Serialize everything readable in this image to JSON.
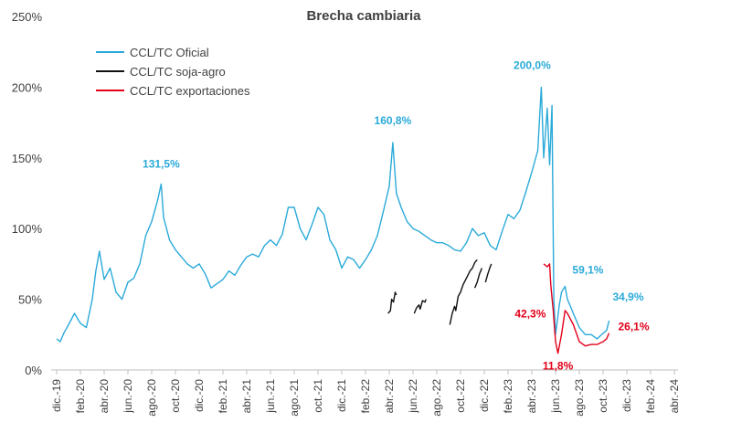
{
  "chart_data": {
    "type": "line",
    "title": "Brecha cambiaria",
    "xlabel": "",
    "ylabel": "",
    "ylim": [
      0,
      250
    ],
    "y_ticks": [
      "0%",
      "50%",
      "100%",
      "150%",
      "200%",
      "250%"
    ],
    "y_tick_values": [
      0,
      50,
      100,
      150,
      200,
      250
    ],
    "x_tick_labels": [
      "dic.-19",
      "feb.-20",
      "abr.-20",
      "jun.-20",
      "ago.-20",
      "oct.-20",
      "dic.-20",
      "feb.-21",
      "abr.-21",
      "jun.-21",
      "ago.-21",
      "oct.-21",
      "dic.-21",
      "feb.-22",
      "abr.-22",
      "jun.-22",
      "ago.-22",
      "oct.-22",
      "dic.-22",
      "feb.-23",
      "abr.-23",
      "jun.-23",
      "ago.-23",
      "oct.-23",
      "dic.-23",
      "feb.-24",
      "abr.-24"
    ],
    "x_unit": "months since Dec 2019",
    "legend_position": "top-left",
    "series": [
      {
        "name": "CCL/TC Oficial",
        "color": "#2BAAD9",
        "points": [
          [
            0,
            22
          ],
          [
            0.3,
            20
          ],
          [
            0.6,
            26
          ],
          [
            1,
            32
          ],
          [
            1.5,
            40
          ],
          [
            2,
            33
          ],
          [
            2.5,
            30
          ],
          [
            3,
            50
          ],
          [
            3.3,
            70
          ],
          [
            3.6,
            84
          ],
          [
            4,
            64
          ],
          [
            4.5,
            72
          ],
          [
            5,
            55
          ],
          [
            5.5,
            50
          ],
          [
            6,
            62
          ],
          [
            6.5,
            65
          ],
          [
            7,
            75
          ],
          [
            7.5,
            95
          ],
          [
            8,
            105
          ],
          [
            8.5,
            120
          ],
          [
            8.8,
            131.5
          ],
          [
            9,
            108
          ],
          [
            9.5,
            92
          ],
          [
            10,
            85
          ],
          [
            10.5,
            80
          ],
          [
            11,
            75
          ],
          [
            11.5,
            72
          ],
          [
            12,
            75
          ],
          [
            12.5,
            68
          ],
          [
            13,
            58
          ],
          [
            13.5,
            61
          ],
          [
            14,
            64
          ],
          [
            14.5,
            70
          ],
          [
            15,
            67
          ],
          [
            15.5,
            74
          ],
          [
            16,
            80
          ],
          [
            16.5,
            82
          ],
          [
            17,
            80
          ],
          [
            17.5,
            88
          ],
          [
            18,
            92
          ],
          [
            18.5,
            88
          ],
          [
            19,
            96
          ],
          [
            19.5,
            115
          ],
          [
            20,
            115
          ],
          [
            20.5,
            100
          ],
          [
            21,
            92
          ],
          [
            21.5,
            103
          ],
          [
            22,
            115
          ],
          [
            22.5,
            110
          ],
          [
            23,
            92
          ],
          [
            23.5,
            85
          ],
          [
            24,
            72
          ],
          [
            24.5,
            80
          ],
          [
            25,
            78
          ],
          [
            25.5,
            72
          ],
          [
            26,
            78
          ],
          [
            26.5,
            85
          ],
          [
            27,
            95
          ],
          [
            27.5,
            112
          ],
          [
            28,
            130
          ],
          [
            28.3,
            160.8
          ],
          [
            28.6,
            125
          ],
          [
            29,
            115
          ],
          [
            29.5,
            105
          ],
          [
            30,
            100
          ],
          [
            30.5,
            98
          ],
          [
            31,
            95
          ],
          [
            31.5,
            92
          ],
          [
            32,
            90
          ],
          [
            32.5,
            90
          ],
          [
            33,
            88
          ],
          [
            33.5,
            85
          ],
          [
            34,
            84
          ],
          [
            34.5,
            90
          ],
          [
            35,
            100
          ],
          [
            35.5,
            95
          ],
          [
            36,
            97
          ],
          [
            36.5,
            88
          ],
          [
            37,
            85
          ],
          [
            37.5,
            98
          ],
          [
            38,
            110
          ],
          [
            38.5,
            107
          ],
          [
            39,
            113
          ],
          [
            39.5,
            126
          ],
          [
            40,
            140
          ],
          [
            40.5,
            155
          ],
          [
            40.8,
            200
          ],
          [
            41,
            150
          ],
          [
            41.3,
            185
          ],
          [
            41.5,
            145
          ],
          [
            41.7,
            187
          ],
          [
            41.85,
            50
          ],
          [
            42,
            25
          ],
          [
            42.3,
            45
          ],
          [
            42.5,
            55
          ],
          [
            42.8,
            59.1
          ],
          [
            43,
            50
          ],
          [
            43.5,
            40
          ],
          [
            44,
            30
          ],
          [
            44.5,
            25
          ],
          [
            45,
            25
          ],
          [
            45.5,
            22
          ],
          [
            46,
            26
          ],
          [
            46.3,
            28
          ],
          [
            46.5,
            34.9
          ]
        ]
      },
      {
        "name": "CCL/TC soja-agro",
        "color": "#111111",
        "segments": [
          [
            [
              27.9,
              40
            ],
            [
              28.1,
              42
            ],
            [
              28.2,
              50
            ],
            [
              28.35,
              48
            ],
            [
              28.5,
              55
            ],
            [
              28.6,
              53
            ]
          ],
          [
            [
              30.1,
              40
            ],
            [
              30.3,
              44
            ],
            [
              30.5,
              46
            ],
            [
              30.6,
              43
            ],
            [
              30.8,
              49
            ],
            [
              31.0,
              48
            ],
            [
              31.1,
              50
            ]
          ],
          [
            [
              33.1,
              32
            ],
            [
              33.3,
              40
            ],
            [
              33.5,
              45
            ],
            [
              33.6,
              42
            ],
            [
              33.8,
              52
            ],
            [
              34.0,
              55
            ],
            [
              34.2,
              60
            ],
            [
              34.5,
              65
            ],
            [
              34.8,
              70
            ],
            [
              35.0,
              72
            ],
            [
              35.2,
              76
            ],
            [
              35.4,
              78
            ]
          ],
          [
            [
              35.2,
              58
            ],
            [
              35.4,
              62
            ],
            [
              35.6,
              68
            ],
            [
              35.8,
              72
            ]
          ],
          [
            [
              36.1,
              62
            ],
            [
              36.3,
              68
            ],
            [
              36.5,
              73
            ],
            [
              36.6,
              75
            ]
          ]
        ]
      },
      {
        "name": "CCL/TC exportaciones",
        "color": "#E2001A",
        "points": [
          [
            41.0,
            75
          ],
          [
            41.3,
            73
          ],
          [
            41.5,
            75
          ],
          [
            41.6,
            60
          ],
          [
            41.8,
            42.3
          ],
          [
            42.0,
            20
          ],
          [
            42.2,
            11.8
          ],
          [
            42.5,
            25
          ],
          [
            42.8,
            42
          ],
          [
            43.0,
            40
          ],
          [
            43.5,
            32
          ],
          [
            44.0,
            20
          ],
          [
            44.5,
            17
          ],
          [
            45.0,
            18
          ],
          [
            45.5,
            18
          ],
          [
            46.0,
            20
          ],
          [
            46.3,
            22
          ],
          [
            46.5,
            26.1
          ]
        ]
      }
    ],
    "annotations": [
      {
        "text": "131,5%",
        "color": "#2BAAD9",
        "x": 8.8,
        "y": 131.5
      },
      {
        "text": "160,8%",
        "color": "#2BAAD9",
        "x": 28.3,
        "y": 160.8
      },
      {
        "text": "200,0%",
        "color": "#2BAAD9",
        "x": 40.8,
        "y": 200
      },
      {
        "text": "59,1%",
        "color": "#2BAAD9",
        "x": 42.8,
        "y": 59.1
      },
      {
        "text": "34,9%",
        "color": "#2BAAD9",
        "x": 46.5,
        "y": 34.9
      },
      {
        "text": "42,3%",
        "color": "#E2001A",
        "x": 41.8,
        "y": 42.3
      },
      {
        "text": "11,8%",
        "color": "#E2001A",
        "x": 42.2,
        "y": 11.8
      },
      {
        "text": "26,1%",
        "color": "#E2001A",
        "x": 46.5,
        "y": 26.1
      }
    ]
  }
}
